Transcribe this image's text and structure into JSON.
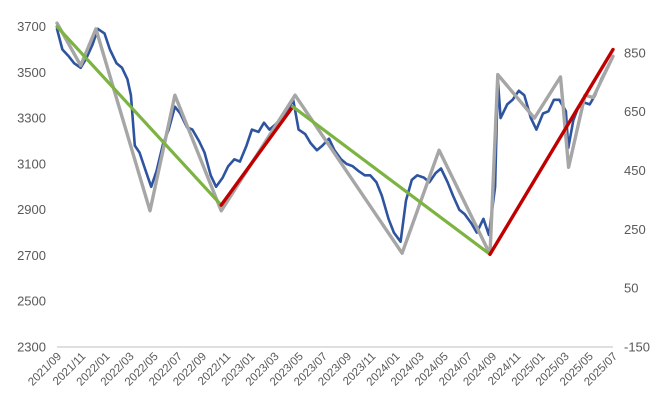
{
  "chart_data": {
    "type": "line",
    "title": "",
    "grid": false,
    "legend": "none",
    "x_tick_labels": [
      "2021/09",
      "2021/11",
      "2022/01",
      "2022/03",
      "2022/05",
      "2022/07",
      "2022/09",
      "2022/11",
      "2023/01",
      "2023/03",
      "2023/05",
      "2023/07",
      "2023/09",
      "2023/11",
      "2024/01",
      "2024/03",
      "2024/05",
      "2024/07",
      "2024/09",
      "2024/11",
      "2025/01",
      "2025/03",
      "2025/05",
      "2025/07"
    ],
    "x_range": [
      "2021-09-01",
      "2025-07-31"
    ],
    "y_left": {
      "ticks": [
        2300,
        2500,
        2700,
        2900,
        3100,
        3300,
        3500,
        3700
      ],
      "range": [
        2300,
        3720
      ]
    },
    "y_right": {
      "ticks": [
        -150,
        50,
        250,
        450,
        650,
        850
      ],
      "range": [
        -150,
        955
      ]
    },
    "colors": {
      "index": "#2e54a0",
      "zigzag": "#a6a6a6",
      "downtrend": "#7cb342",
      "uptrend": "#c00000",
      "axis": "#bfbfbf"
    },
    "series": [
      {
        "axis": "left",
        "color": "#2e54a0",
        "points": [
          [
            "2021-09-01",
            3690
          ],
          [
            "2021-09-15",
            3600
          ],
          [
            "2021-10-01",
            3570
          ],
          [
            "2021-10-15",
            3540
          ],
          [
            "2021-11-01",
            3520
          ],
          [
            "2021-11-15",
            3560
          ],
          [
            "2021-12-01",
            3620
          ],
          [
            "2021-12-15",
            3690
          ],
          [
            "2022-01-01",
            3670
          ],
          [
            "2022-01-15",
            3600
          ],
          [
            "2022-02-01",
            3540
          ],
          [
            "2022-02-15",
            3520
          ],
          [
            "2022-03-01",
            3470
          ],
          [
            "2022-03-10",
            3400
          ],
          [
            "2022-03-20",
            3180
          ],
          [
            "2022-04-01",
            3150
          ],
          [
            "2022-04-15",
            3080
          ],
          [
            "2022-05-01",
            3000
          ],
          [
            "2022-05-15",
            3070
          ],
          [
            "2022-06-01",
            3190
          ],
          [
            "2022-06-15",
            3250
          ],
          [
            "2022-07-01",
            3350
          ],
          [
            "2022-07-15",
            3320
          ],
          [
            "2022-08-01",
            3260
          ],
          [
            "2022-08-15",
            3250
          ],
          [
            "2022-09-01",
            3200
          ],
          [
            "2022-09-15",
            3150
          ],
          [
            "2022-10-01",
            3050
          ],
          [
            "2022-10-15",
            3000
          ],
          [
            "2022-11-01",
            3040
          ],
          [
            "2022-11-15",
            3090
          ],
          [
            "2022-12-01",
            3120
          ],
          [
            "2022-12-15",
            3110
          ],
          [
            "2023-01-01",
            3180
          ],
          [
            "2023-01-15",
            3250
          ],
          [
            "2023-02-01",
            3240
          ],
          [
            "2023-02-15",
            3280
          ],
          [
            "2023-03-01",
            3250
          ],
          [
            "2023-03-15",
            3270
          ],
          [
            "2023-04-01",
            3300
          ],
          [
            "2023-04-15",
            3330
          ],
          [
            "2023-05-01",
            3380
          ],
          [
            "2023-05-15",
            3250
          ],
          [
            "2023-06-01",
            3230
          ],
          [
            "2023-06-15",
            3190
          ],
          [
            "2023-07-01",
            3160
          ],
          [
            "2023-07-15",
            3180
          ],
          [
            "2023-08-01",
            3210
          ],
          [
            "2023-08-15",
            3160
          ],
          [
            "2023-09-01",
            3120
          ],
          [
            "2023-09-15",
            3100
          ],
          [
            "2023-10-01",
            3090
          ],
          [
            "2023-10-15",
            3070
          ],
          [
            "2023-11-01",
            3050
          ],
          [
            "2023-11-15",
            3050
          ],
          [
            "2023-12-01",
            3020
          ],
          [
            "2023-12-15",
            2960
          ],
          [
            "2024-01-01",
            2860
          ],
          [
            "2024-01-15",
            2800
          ],
          [
            "2024-02-01",
            2760
          ],
          [
            "2024-02-15",
            2940
          ],
          [
            "2024-03-01",
            3030
          ],
          [
            "2024-03-15",
            3050
          ],
          [
            "2024-04-01",
            3040
          ],
          [
            "2024-04-15",
            3020
          ],
          [
            "2024-05-01",
            3060
          ],
          [
            "2024-05-15",
            3080
          ],
          [
            "2024-06-01",
            3020
          ],
          [
            "2024-06-15",
            2960
          ],
          [
            "2024-07-01",
            2900
          ],
          [
            "2024-07-15",
            2880
          ],
          [
            "2024-08-01",
            2840
          ],
          [
            "2024-08-15",
            2800
          ],
          [
            "2024-09-01",
            2860
          ],
          [
            "2024-09-15",
            2790
          ],
          [
            "2024-10-01",
            3000
          ],
          [
            "2024-10-08",
            3470
          ],
          [
            "2024-10-15",
            3300
          ],
          [
            "2024-11-01",
            3360
          ],
          [
            "2024-11-15",
            3380
          ],
          [
            "2024-12-01",
            3420
          ],
          [
            "2024-12-15",
            3400
          ],
          [
            "2025-01-01",
            3300
          ],
          [
            "2025-01-15",
            3250
          ],
          [
            "2025-02-01",
            3320
          ],
          [
            "2025-02-15",
            3330
          ],
          [
            "2025-03-01",
            3380
          ],
          [
            "2025-03-15",
            3380
          ],
          [
            "2025-04-01",
            3330
          ],
          [
            "2025-04-07",
            3170
          ],
          [
            "2025-04-20",
            3290
          ],
          [
            "2025-05-01",
            3340
          ],
          [
            "2025-05-15",
            3370
          ],
          [
            "2025-06-01",
            3360
          ],
          [
            "2025-06-15",
            3400
          ],
          [
            "2025-07-01",
            3470
          ],
          [
            "2025-07-31",
            3570
          ]
        ]
      },
      {
        "axis": "left",
        "color": "#a6a6a6",
        "points": [
          [
            "2021-09-01",
            3715
          ],
          [
            "2021-11-01",
            3530
          ],
          [
            "2021-12-10",
            3690
          ],
          [
            "2022-04-28",
            2895
          ],
          [
            "2022-07-01",
            3400
          ],
          [
            "2022-10-28",
            2895
          ],
          [
            "2023-05-06",
            3400
          ],
          [
            "2024-02-05",
            2710
          ],
          [
            "2024-05-10",
            3160
          ],
          [
            "2024-09-18",
            2705
          ],
          [
            "2024-10-08",
            3490
          ],
          [
            "2025-01-10",
            3300
          ],
          [
            "2025-03-18",
            3480
          ],
          [
            "2025-04-08",
            3085
          ],
          [
            "2025-05-20",
            3400
          ],
          [
            "2025-06-10",
            3390
          ],
          [
            "2025-07-31",
            3570
          ]
        ]
      },
      {
        "axis": "left",
        "color": "#7cb342",
        "points": [
          [
            "2021-09-01",
            3700
          ],
          [
            "2022-10-28",
            2920
          ]
        ]
      },
      {
        "axis": "left",
        "color": "#c00000",
        "points": [
          [
            "2022-10-28",
            2920
          ],
          [
            "2023-04-30",
            3350
          ]
        ]
      },
      {
        "axis": "left",
        "color": "#7cb342",
        "points": [
          [
            "2023-04-30",
            3350
          ],
          [
            "2024-09-18",
            2705
          ]
        ]
      },
      {
        "axis": "left",
        "color": "#c00000",
        "points": [
          [
            "2024-09-18",
            2705
          ],
          [
            "2025-07-31",
            3600
          ]
        ]
      }
    ]
  }
}
